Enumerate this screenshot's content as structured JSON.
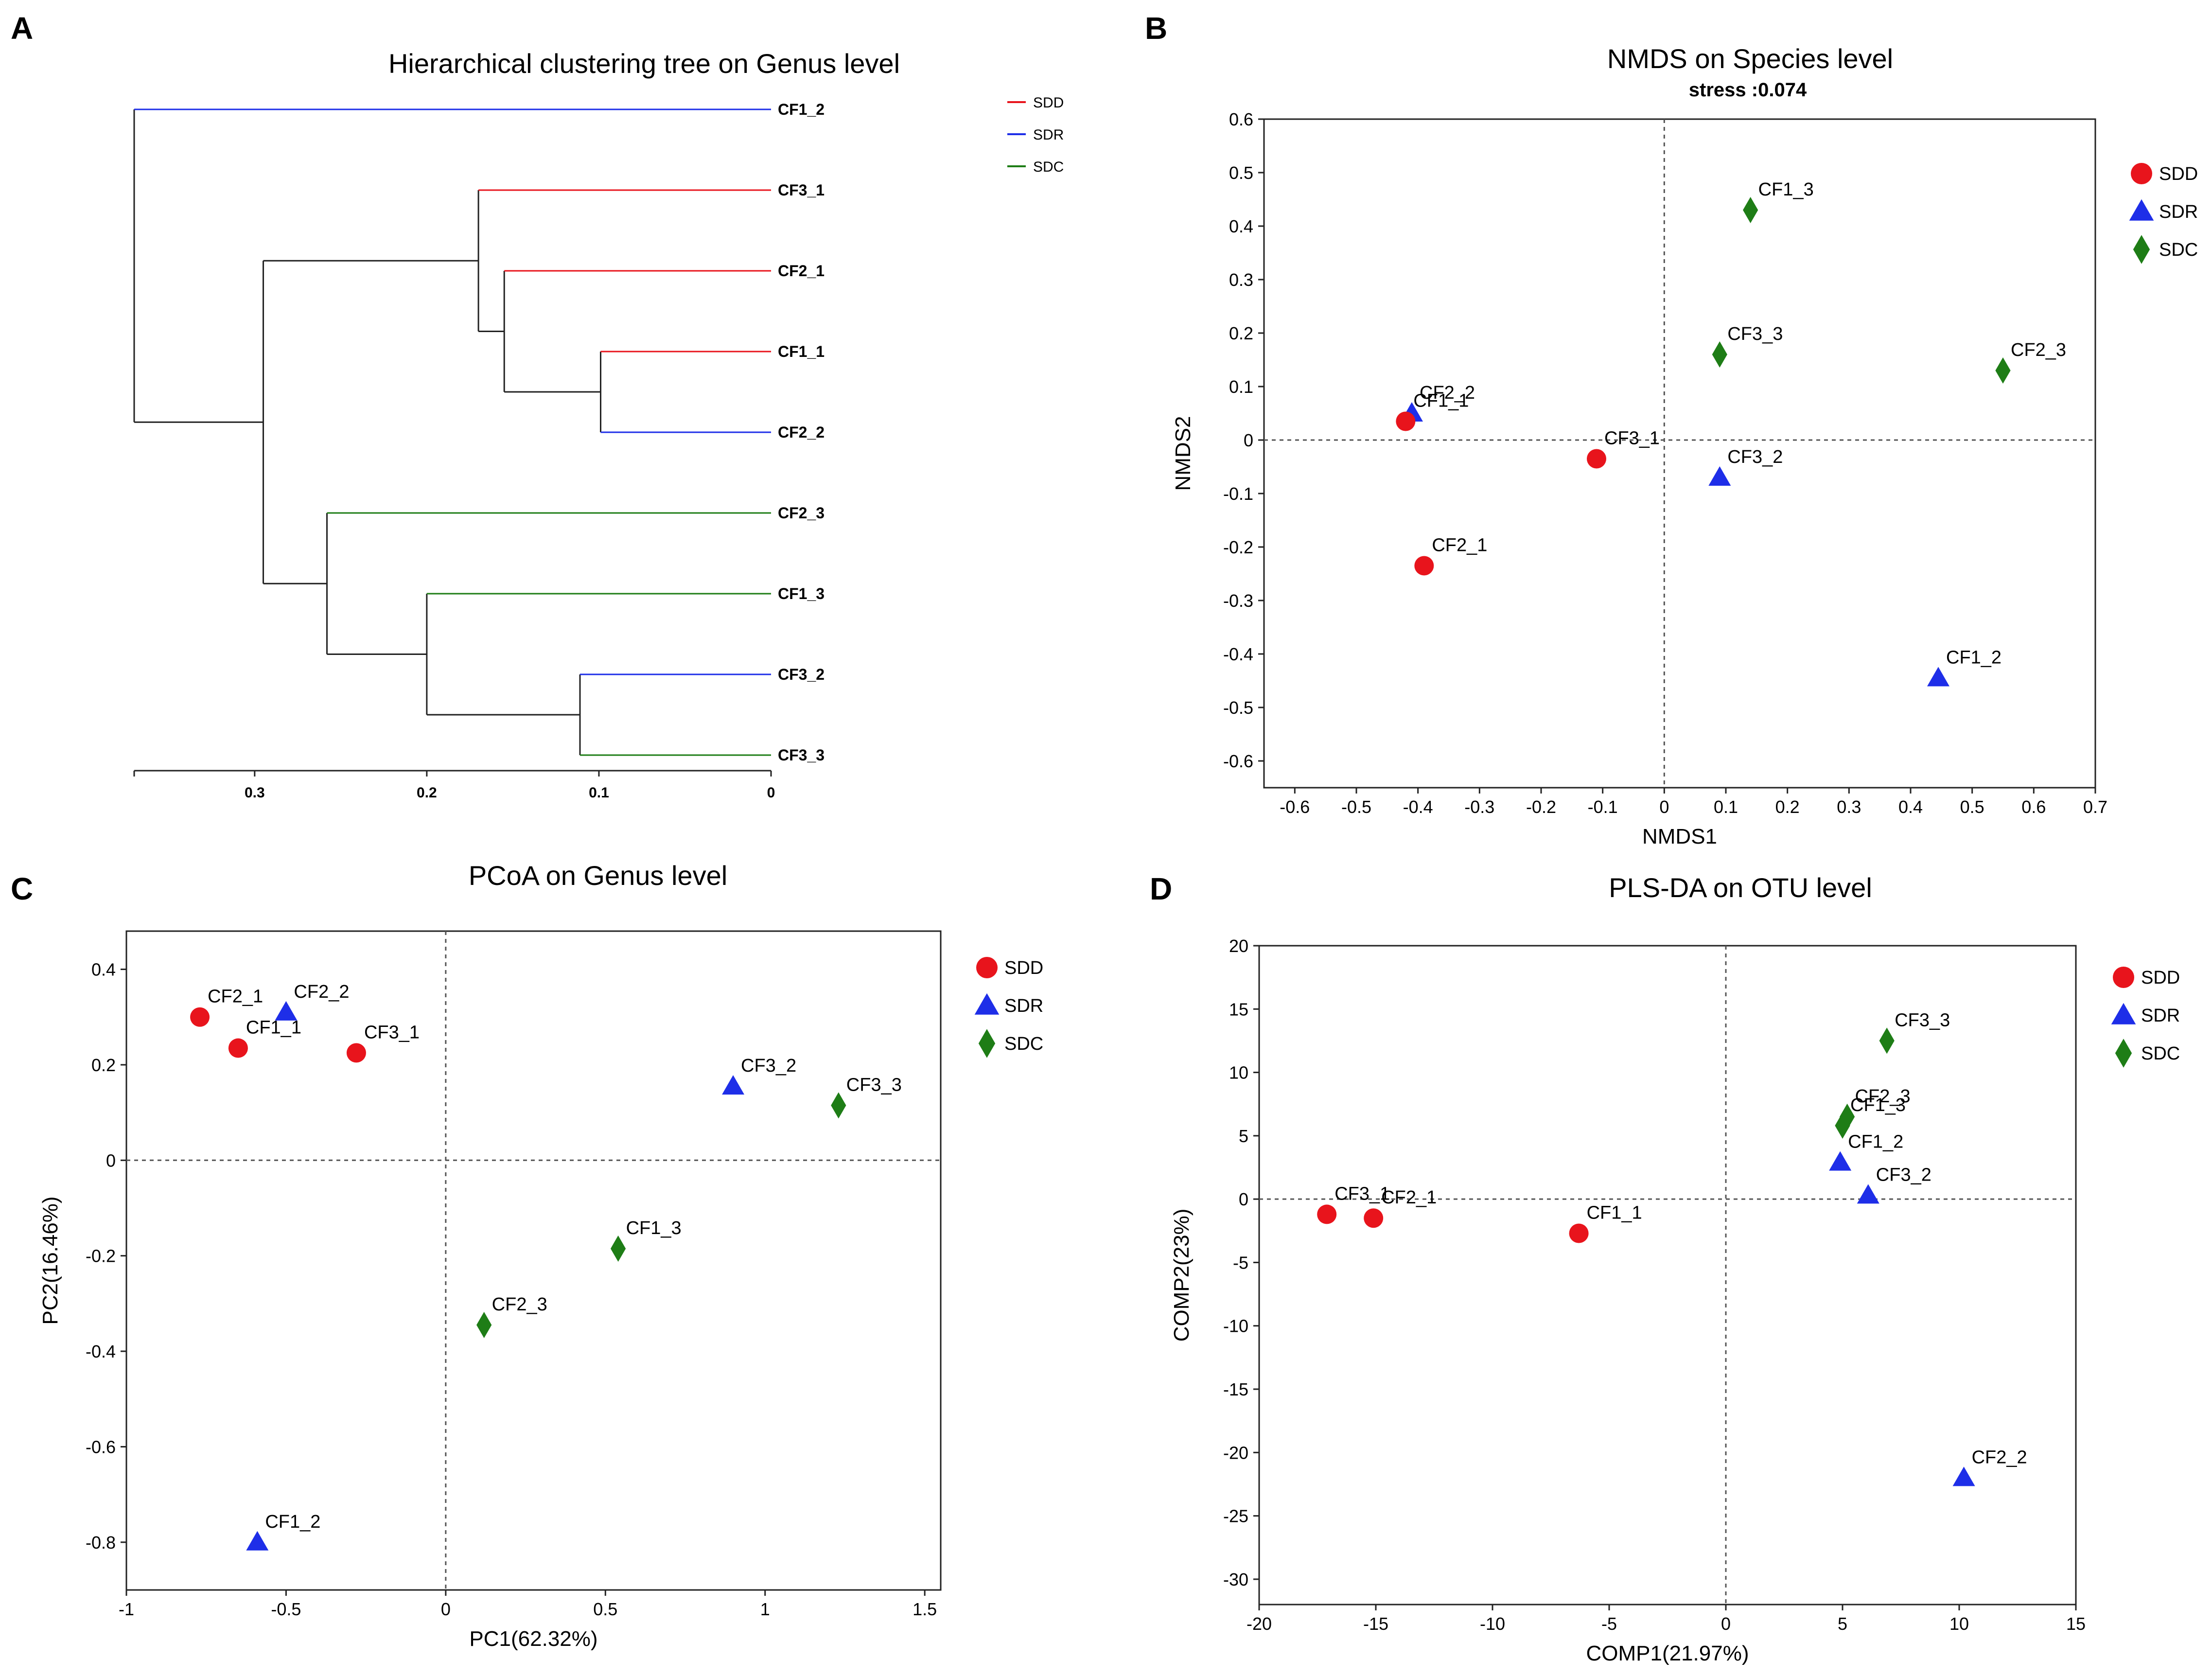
{
  "panels": {
    "a": "A",
    "b": "B",
    "c": "C",
    "d": "D"
  },
  "colors": {
    "SDD": "#e8141c",
    "SDR": "#1e2ee8",
    "SDC": "#1e7d16"
  },
  "chart_data": [
    {
      "type": "dendrogram",
      "panel": "A",
      "title": "Hierarchical clustering tree on Genus level",
      "axis_ticks": [
        "0.3",
        "0.2",
        "0.1",
        "0"
      ],
      "axis_range": [
        0.37,
        0
      ],
      "legend": [
        {
          "name": "SDD",
          "color": "#e8141c"
        },
        {
          "name": "SDR",
          "color": "#1e2ee8"
        },
        {
          "name": "SDC",
          "color": "#1e7d16"
        }
      ],
      "leaves": [
        {
          "name": "CF1_2",
          "group": "SDR"
        },
        {
          "name": "CF3_1",
          "group": "SDD"
        },
        {
          "name": "CF2_1",
          "group": "SDD"
        },
        {
          "name": "CF1_1",
          "group": "SDD"
        },
        {
          "name": "CF2_2",
          "group": "SDR"
        },
        {
          "name": "CF2_3",
          "group": "SDC"
        },
        {
          "name": "CF1_3",
          "group": "SDC"
        },
        {
          "name": "CF3_2",
          "group": "SDR"
        },
        {
          "name": "CF3_3",
          "group": "SDC"
        }
      ],
      "merges": [
        {
          "id": "m1",
          "children": [
            "CF1_1",
            "CF2_2"
          ],
          "height": 0.099
        },
        {
          "id": "m2",
          "children": [
            "CF2_1",
            "m1"
          ],
          "height": 0.155
        },
        {
          "id": "m3",
          "children": [
            "CF3_1",
            "m2"
          ],
          "height": 0.17
        },
        {
          "id": "m4",
          "children": [
            "CF3_2",
            "CF3_3"
          ],
          "height": 0.111
        },
        {
          "id": "m5",
          "children": [
            "CF1_3",
            "m4"
          ],
          "height": 0.2
        },
        {
          "id": "m6",
          "children": [
            "CF2_3",
            "m5"
          ],
          "height": 0.258
        },
        {
          "id": "m7",
          "children": [
            "m3",
            "m6"
          ],
          "height": 0.295
        },
        {
          "id": "m8",
          "children": [
            "CF1_2",
            "m7"
          ],
          "height": 0.37
        }
      ]
    },
    {
      "type": "scatter",
      "panel": "B",
      "title": "NMDS on Species level",
      "subtitle": "stress :0.074",
      "xlabel": "NMDS1",
      "ylabel": "NMDS2",
      "xlim": [
        -0.65,
        0.7
      ],
      "ylim": [
        -0.65,
        0.6
      ],
      "xticks": [
        "-0.6",
        "-0.5",
        "-0.4",
        "-0.3",
        "-0.2",
        "-0.1",
        "0",
        "0.1",
        "0.2",
        "0.3",
        "0.4",
        "0.5",
        "0.6",
        "0.7"
      ],
      "xtick_values": [
        -0.6,
        -0.5,
        -0.4,
        -0.3,
        -0.2,
        -0.1,
        0,
        0.1,
        0.2,
        0.3,
        0.4,
        0.5,
        0.6,
        0.7
      ],
      "yticks": [
        "0.6",
        "0.5",
        "0.4",
        "0.3",
        "0.2",
        "0.1",
        "0",
        "-0.1",
        "-0.2",
        "-0.3",
        "-0.4",
        "-0.5",
        "-0.6"
      ],
      "ytick_values": [
        0.6,
        0.5,
        0.4,
        0.3,
        0.2,
        0.1,
        0,
        -0.1,
        -0.2,
        -0.3,
        -0.4,
        -0.5,
        -0.6
      ],
      "legend": [
        "SDD",
        "SDR",
        "SDC"
      ],
      "points": [
        {
          "label": "CF2_2",
          "group": "SDR",
          "x": -0.41,
          "y": 0.05
        },
        {
          "label": "CF1_1",
          "group": "SDD",
          "x": -0.42,
          "y": 0.035
        },
        {
          "label": "CF2_1",
          "group": "SDD",
          "x": -0.39,
          "y": -0.235
        },
        {
          "label": "CF3_1",
          "group": "SDD",
          "x": -0.11,
          "y": -0.035
        },
        {
          "label": "CF1_3",
          "group": "SDC",
          "x": 0.14,
          "y": 0.43
        },
        {
          "label": "CF3_3",
          "group": "SDC",
          "x": 0.09,
          "y": 0.16
        },
        {
          "label": "CF2_3",
          "group": "SDC",
          "x": 0.55,
          "y": 0.13
        },
        {
          "label": "CF3_2",
          "group": "SDR",
          "x": 0.09,
          "y": -0.07
        },
        {
          "label": "CF1_2",
          "group": "SDR",
          "x": 0.445,
          "y": -0.445
        }
      ]
    },
    {
      "type": "scatter",
      "panel": "C",
      "title": "PCoA on Genus level",
      "xlabel": "PC1(62.32%)",
      "ylabel": "PC2(16.46%)",
      "xlim": [
        -1,
        1.55
      ],
      "ylim": [
        -0.9,
        0.48
      ],
      "xticks": [
        "-1",
        "-0.5",
        "0",
        "0.5",
        "1",
        "1.5"
      ],
      "xtick_values": [
        -1,
        -0.5,
        0,
        0.5,
        1,
        1.5
      ],
      "yticks": [
        "0.4",
        "0.2",
        "0",
        "-0.2",
        "-0.4",
        "-0.6",
        "-0.8"
      ],
      "ytick_values": [
        0.4,
        0.2,
        0,
        -0.2,
        -0.4,
        -0.6,
        -0.8
      ],
      "legend": [
        "SDD",
        "SDR",
        "SDC"
      ],
      "points": [
        {
          "label": "CF2_1",
          "group": "SDD",
          "x": -0.77,
          "y": 0.3
        },
        {
          "label": "CF1_1",
          "group": "SDD",
          "x": -0.65,
          "y": 0.235
        },
        {
          "label": "CF2_2",
          "group": "SDR",
          "x": -0.5,
          "y": 0.31
        },
        {
          "label": "CF3_1",
          "group": "SDD",
          "x": -0.28,
          "y": 0.225
        },
        {
          "label": "CF3_2",
          "group": "SDR",
          "x": 0.9,
          "y": 0.155
        },
        {
          "label": "CF3_3",
          "group": "SDC",
          "x": 1.23,
          "y": 0.115
        },
        {
          "label": "CF1_3",
          "group": "SDC",
          "x": 0.54,
          "y": -0.185
        },
        {
          "label": "CF2_3",
          "group": "SDC",
          "x": 0.12,
          "y": -0.345
        },
        {
          "label": "CF1_2",
          "group": "SDR",
          "x": -0.59,
          "y": -0.8
        }
      ]
    },
    {
      "type": "scatter",
      "panel": "D",
      "title": "PLS-DA on OTU level",
      "xlabel": "COMP1(21.97%)",
      "ylabel": "COMP2(23%)",
      "xlim": [
        -20,
        15
      ],
      "ylim": [
        -32,
        20
      ],
      "xticks": [
        "-20",
        "-15",
        "-10",
        "-5",
        "0",
        "5",
        "10",
        "15"
      ],
      "xtick_values": [
        -20,
        -15,
        -10,
        -5,
        0,
        5,
        10,
        15
      ],
      "yticks": [
        "20",
        "15",
        "10",
        "5",
        "0",
        "-5",
        "-10",
        "-15",
        "-20",
        "-25",
        "-30"
      ],
      "ytick_values": [
        20,
        15,
        10,
        5,
        0,
        -5,
        -10,
        -15,
        -20,
        -25,
        -30
      ],
      "legend": [
        "SDD",
        "SDR",
        "SDC"
      ],
      "points": [
        {
          "label": "CF3_1",
          "group": "SDD",
          "x": -17.1,
          "y": -1.2
        },
        {
          "label": "CF2_1",
          "group": "SDD",
          "x": -15.1,
          "y": -1.5
        },
        {
          "label": "CF1_1",
          "group": "SDD",
          "x": -6.3,
          "y": -2.7
        },
        {
          "label": "CF3_3",
          "group": "SDC",
          "x": 6.9,
          "y": 12.5
        },
        {
          "label": "CF2_3",
          "group": "SDC",
          "x": 5.2,
          "y": 6.5
        },
        {
          "label": "CF1_3",
          "group": "SDC",
          "x": 5.0,
          "y": 5.8
        },
        {
          "label": "CF1_2",
          "group": "SDR",
          "x": 4.9,
          "y": 2.9
        },
        {
          "label": "CF3_2",
          "group": "SDR",
          "x": 6.1,
          "y": 0.3
        },
        {
          "label": "CF2_2",
          "group": "SDR",
          "x": 10.2,
          "y": -22
        }
      ]
    }
  ]
}
